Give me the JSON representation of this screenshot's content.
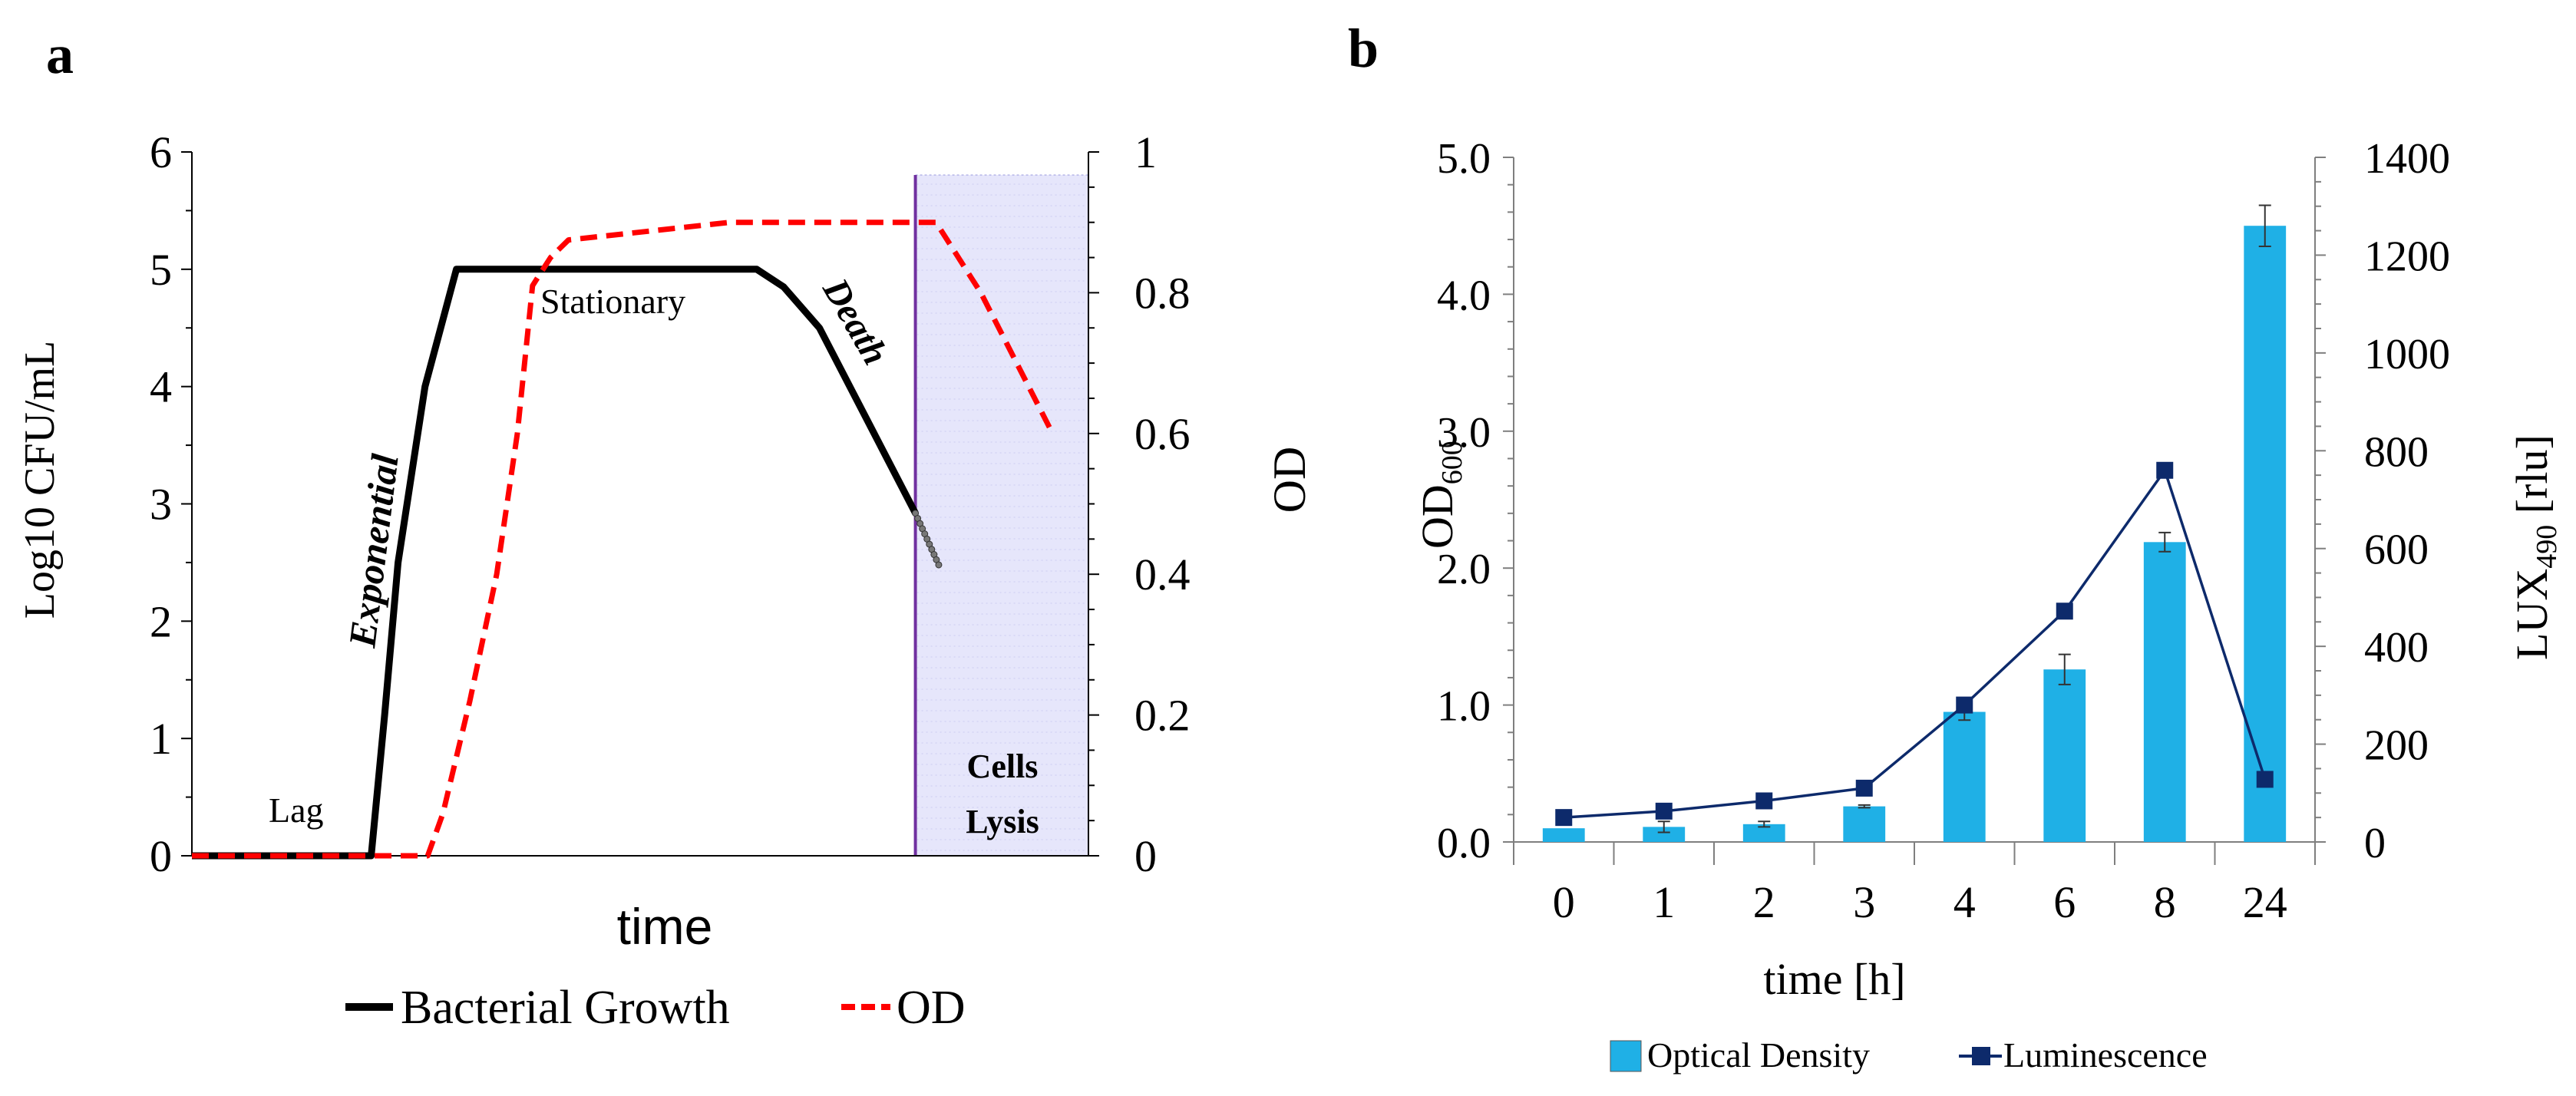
{
  "panels": {
    "a_label": "a",
    "b_label": "b"
  },
  "colors": {
    "growth": "#000000",
    "od_line": "#ff0000",
    "lysis_fill": "#e6e6fb",
    "lysis_line": "#7030a0",
    "bar": "#1fb0e6",
    "lum": "#0d2a6b",
    "lysis_text": "#808080"
  },
  "chart_data": [
    {
      "panel": "a",
      "type": "line",
      "xlabel": "time",
      "ylabel_left": "Log10 CFU/mL",
      "ylabel_right": "OD",
      "ylim_left": [
        0,
        6
      ],
      "yticks_left": [
        "0",
        "1",
        "2",
        "3",
        "4",
        "5",
        "6"
      ],
      "ylim_right": [
        0,
        1
      ],
      "yticks_right": [
        "0",
        "0.2",
        "0.4",
        "0.6",
        "0.8",
        "1"
      ],
      "xlim": [
        0,
        100
      ],
      "phase_labels": {
        "lag": "Lag",
        "exponential": "Exponential",
        "stationary": "Stationary",
        "death": "Death"
      },
      "lysis_region": {
        "x_start": 80.7,
        "x_end": 100,
        "label_line1": "Cells",
        "label_line2": "Lysis"
      },
      "series": [
        {
          "name": "Bacterial Growth",
          "axis": "left",
          "x": [
            0,
            20,
            21.5,
            23,
            26,
            29.5,
            63,
            66,
            70,
            80.7
          ],
          "y": [
            0,
            0,
            1.2,
            2.5,
            4.0,
            5.0,
            5.0,
            4.85,
            4.5,
            2.92
          ]
        },
        {
          "name": "OD",
          "axis": "right",
          "x": [
            0,
            26.3,
            28,
            31,
            34,
            36.3,
            38,
            40,
            42,
            60,
            83,
            88,
            96
          ],
          "y": [
            0,
            0,
            0.06,
            0.22,
            0.4,
            0.6,
            0.81,
            0.85,
            0.875,
            0.9,
            0.9,
            0.8,
            0.6
          ]
        }
      ],
      "legend": [
        "Bacterial Growth",
        "OD"
      ]
    },
    {
      "panel": "b",
      "type": "bar+line",
      "xlabel": "time [h]",
      "ylabel_left_main": "OD",
      "ylabel_left_sub": "600",
      "ylabel_right_main": "LUX",
      "ylabel_right_sub": "490",
      "ylabel_right_unit": " [rlu]",
      "categories": [
        "0",
        "1",
        "2",
        "3",
        "4",
        "6",
        "8",
        "24"
      ],
      "ylim_left": [
        0,
        5
      ],
      "yticks_left": [
        "0.0",
        "1.0",
        "2.0",
        "3.0",
        "4.0",
        "5.0"
      ],
      "ylim_right": [
        0,
        1400
      ],
      "yticks_right": [
        "0",
        "200",
        "400",
        "600",
        "800",
        "1000",
        "1200",
        "1400"
      ],
      "series": [
        {
          "name": "Optical Density",
          "type": "bar",
          "axis": "left",
          "values": [
            0.1,
            0.11,
            0.13,
            0.26,
            0.95,
            1.26,
            2.19,
            4.5
          ],
          "errors": [
            0.0,
            0.04,
            0.02,
            0.01,
            0.06,
            0.11,
            0.07,
            0.15
          ]
        },
        {
          "name": "Luminescence",
          "type": "line",
          "axis": "right",
          "values": [
            50,
            63,
            84,
            110,
            280,
            472,
            760,
            128
          ]
        }
      ],
      "legend": [
        "Optical Density",
        "Luminescence"
      ]
    }
  ]
}
